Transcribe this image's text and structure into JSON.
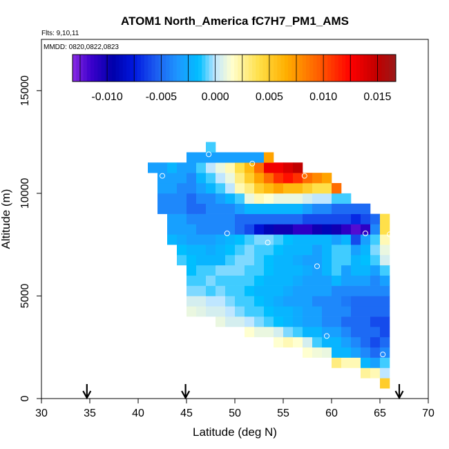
{
  "chart_data": {
    "type": "heatmap",
    "title": "ATOM1 North_America fC7H7_PM1_AMS",
    "subtitle_flights": "Flts: 9,10,11",
    "subtitle_dates": "MMDD: 0820,0822,0823",
    "xlabel": "Latitude (deg N)",
    "ylabel": "Altitude (m)",
    "xlim": [
      30,
      70
    ],
    "ylim": [
      0,
      17500
    ],
    "x_ticks": [
      "30",
      "35",
      "40",
      "45",
      "50",
      "55",
      "60",
      "65",
      "70"
    ],
    "y_ticks": [
      "0",
      "5000",
      "10000",
      "15000"
    ],
    "colorbar": {
      "range": [
        -0.0132,
        0.0167
      ],
      "tick_labels": [
        "-0.010",
        "-0.005",
        "0.000",
        "0.005",
        "0.010",
        "0.015"
      ],
      "tick_values": [
        -0.01,
        -0.005,
        0.0,
        0.005,
        0.01,
        0.015
      ],
      "color_stops": [
        {
          "v": -0.0132,
          "c": "#8a2be2"
        },
        {
          "v": -0.0115,
          "c": "#3c00cc"
        },
        {
          "v": -0.0095,
          "c": "#0000aa"
        },
        {
          "v": -0.0075,
          "c": "#0018e0"
        },
        {
          "v": -0.0055,
          "c": "#1c5cf0"
        },
        {
          "v": -0.0035,
          "c": "#1e96ff"
        },
        {
          "v": -0.0015,
          "c": "#00bfff"
        },
        {
          "v": 0.0,
          "c": "#bfe6ff"
        },
        {
          "v": 0.0015,
          "c": "#ffffd0"
        },
        {
          "v": 0.004,
          "c": "#ffe04a"
        },
        {
          "v": 0.0065,
          "c": "#ffb000"
        },
        {
          "v": 0.0095,
          "c": "#ff6000"
        },
        {
          "v": 0.0125,
          "c": "#ff0000"
        },
        {
          "v": 0.015,
          "c": "#c00000"
        },
        {
          "v": 0.0167,
          "c": "#9a1a1a"
        }
      ]
    },
    "cell_size": {
      "lat": 1.0,
      "alt": 500
    },
    "rows": [
      {
        "alt": 500,
        "lat0": 65,
        "values": [
          0.005
        ]
      },
      {
        "alt": 1000,
        "lat0": 63,
        "values": [
          0.0025,
          0.002,
          0.0
        ]
      },
      {
        "alt": 1500,
        "lat0": 60,
        "values": [
          0.003,
          0.002,
          0.002,
          -0.002,
          -0.003,
          -0.001
        ]
      },
      {
        "alt": 2000,
        "lat0": 57,
        "values": [
          0.0015,
          0.0012,
          0.001,
          -0.002,
          -0.002,
          -0.003,
          -0.004,
          -0.005,
          -0.004
        ]
      },
      {
        "alt": 2500,
        "lat0": 54,
        "values": [
          0.0015,
          0.002,
          0.0015,
          0.0005,
          -0.001,
          -0.002,
          -0.002,
          -0.003,
          -0.004,
          -0.005,
          -0.006,
          -0.005
        ]
      },
      {
        "alt": 3000,
        "lat0": 51,
        "values": [
          0.0015,
          0.001,
          0.001,
          0.0005,
          -0.0005,
          -0.001,
          -0.002,
          -0.002,
          -0.003,
          -0.003,
          -0.004,
          -0.005,
          -0.005,
          -0.005,
          -0.006
        ]
      },
      {
        "alt": 3500,
        "lat0": 48,
        "values": [
          0.001,
          0.0005,
          0.0005,
          0.0,
          -0.0005,
          -0.001,
          -0.0015,
          -0.002,
          -0.0025,
          -0.003,
          -0.003,
          -0.004,
          -0.004,
          -0.005,
          -0.005,
          -0.005,
          -0.006,
          -0.006
        ]
      },
      {
        "alt": 4000,
        "lat0": 45,
        "values": [
          0.001,
          0.0008,
          0.0005,
          0.0005,
          0.0,
          -0.0005,
          -0.001,
          -0.001,
          -0.0015,
          -0.002,
          -0.002,
          -0.0025,
          -0.003,
          -0.003,
          -0.004,
          -0.004,
          -0.004,
          -0.005,
          -0.005,
          -0.005,
          -0.005
        ]
      },
      {
        "alt": 4500,
        "lat0": 45,
        "values": [
          0.0005,
          0.0005,
          0.0,
          0.0,
          -0.0005,
          -0.001,
          -0.001,
          -0.0015,
          -0.002,
          -0.0025,
          -0.003,
          -0.003,
          -0.003,
          -0.004,
          -0.004,
          -0.004,
          -0.0045,
          -0.005,
          -0.005,
          -0.005,
          -0.005
        ]
      },
      {
        "alt": 5000,
        "lat0": 45,
        "values": [
          -0.0005,
          -0.0005,
          -0.001,
          -0.0005,
          -0.001,
          -0.001,
          -0.0015,
          -0.002,
          -0.002,
          -0.002,
          -0.0025,
          -0.003,
          -0.003,
          -0.003,
          -0.003,
          -0.004,
          -0.004,
          -0.004,
          -0.004,
          -0.004,
          -0.004
        ]
      },
      {
        "alt": 5500,
        "lat0": 45,
        "values": [
          -0.001,
          -0.001,
          -0.0005,
          -0.001,
          -0.001,
          -0.001,
          -0.001,
          -0.0015,
          -0.002,
          -0.002,
          -0.002,
          -0.0025,
          -0.003,
          -0.003,
          -0.003,
          -0.002,
          -0.003,
          -0.003,
          -0.003,
          -0.004,
          -0.003
        ]
      },
      {
        "alt": 6000,
        "lat0": 45,
        "values": [
          -0.0015,
          -0.001,
          -0.001,
          -0.0005,
          -0.0005,
          -0.0005,
          -0.001,
          -0.001,
          -0.0015,
          -0.002,
          -0.002,
          -0.002,
          -0.0025,
          -0.003,
          -0.002,
          -0.001,
          -0.003,
          -0.002,
          -0.002,
          -0.003,
          -0.001
        ]
      },
      {
        "alt": 6500,
        "lat0": 44,
        "values": [
          -0.001,
          -0.0015,
          -0.002,
          -0.002,
          -0.002,
          -0.001,
          -0.0005,
          -0.0005,
          -0.001,
          -0.0015,
          -0.002,
          -0.002,
          -0.0025,
          -0.003,
          -0.003,
          -0.002,
          -0.001,
          -0.001,
          -0.002,
          -0.0015,
          -0.001,
          0.0005
        ]
      },
      {
        "alt": 7000,
        "lat0": 44,
        "values": [
          -0.0015,
          -0.002,
          -0.002,
          -0.0025,
          -0.002,
          -0.0015,
          -0.001,
          -0.0005,
          -0.001,
          -0.001,
          -0.0015,
          -0.002,
          -0.002,
          -0.002,
          -0.003,
          -0.002,
          -0.001,
          -0.001,
          -0.003,
          -0.002,
          -0.0005,
          0.001
        ]
      },
      {
        "alt": 7500,
        "lat0": 43,
        "values": [
          -0.002,
          -0.0025,
          -0.003,
          -0.003,
          -0.003,
          -0.0025,
          -0.002,
          -0.0015,
          -0.001,
          -0.0005,
          -0.0005,
          -0.001,
          -0.0015,
          -0.002,
          -0.002,
          -0.002,
          -0.002,
          -0.003,
          -0.002,
          -0.006,
          -0.003,
          -0.001,
          0.002
        ]
      },
      {
        "alt": 8000,
        "lat0": 43,
        "values": [
          -0.003,
          -0.003,
          -0.003,
          -0.004,
          -0.004,
          -0.004,
          -0.004,
          -0.005,
          -0.006,
          -0.008,
          -0.009,
          -0.01,
          -0.01,
          -0.011,
          -0.011,
          -0.01,
          -0.009,
          -0.01,
          -0.011,
          -0.012,
          -0.011,
          -0.004,
          0.004
        ]
      },
      {
        "alt": 8500,
        "lat0": 43,
        "values": [
          -0.003,
          -0.003,
          -0.004,
          -0.004,
          -0.004,
          -0.004,
          -0.004,
          -0.005,
          -0.005,
          -0.005,
          -0.005,
          -0.005,
          -0.005,
          -0.005,
          -0.006,
          -0.006,
          -0.006,
          -0.006,
          -0.006,
          -0.007,
          -0.006,
          -0.005,
          0.004
        ]
      },
      {
        "alt": 9000,
        "lat0": 42,
        "values": [
          -0.004,
          -0.004,
          -0.004,
          -0.005,
          -0.005,
          -0.004,
          -0.004,
          -0.004,
          -0.003,
          -0.002,
          -0.002,
          -0.002,
          -0.002,
          -0.002,
          -0.002,
          -0.003,
          -0.004,
          -0.004,
          -0.005,
          -0.005,
          -0.005,
          -0.005
        ]
      },
      {
        "alt": 9500,
        "lat0": 42,
        "values": [
          -0.004,
          -0.004,
          -0.004,
          -0.005,
          -0.004,
          -0.004,
          -0.003,
          -0.002,
          -0.001,
          0.001,
          0.002,
          0.0015,
          0.001,
          0.001,
          0.001,
          0.0005,
          0.0,
          0.0,
          -0.001,
          -0.001
        ]
      },
      {
        "alt": 10000,
        "lat0": 42,
        "values": [
          -0.003,
          -0.003,
          -0.004,
          -0.004,
          -0.003,
          -0.002,
          -0.001,
          0.0,
          0.002,
          0.003,
          0.005,
          0.006,
          0.007,
          0.006,
          0.006,
          0.005,
          0.004,
          0.004,
          0.009
        ]
      },
      {
        "alt": 10500,
        "lat0": 42,
        "values": [
          -0.003,
          -0.003,
          -0.003,
          -0.004,
          -0.002,
          -0.001,
          0.0,
          0.001,
          0.003,
          0.005,
          0.007,
          0.009,
          0.011,
          0.012,
          0.011,
          0.009,
          0.008,
          0.007
        ]
      },
      {
        "alt": 11000,
        "lat0": 41,
        "values": [
          -0.003,
          -0.003,
          -0.002,
          -0.003,
          -0.003,
          -0.001,
          0.0,
          0.001,
          0.002,
          0.004,
          0.006,
          0.009,
          0.013,
          0.013,
          0.014,
          0.015
        ]
      },
      {
        "alt": 11500,
        "lat0": 45,
        "values": [
          -0.003,
          -0.003,
          -0.003,
          -0.003,
          -0.003,
          -0.003,
          -0.003,
          -0.003,
          0.007
        ]
      },
      {
        "alt": 12000,
        "lat0": 47,
        "values": [
          -0.001
        ]
      }
    ],
    "markers": [
      {
        "lat": 42.5,
        "alt": 10850
      },
      {
        "lat": 47.3,
        "alt": 11900
      },
      {
        "lat": 51.8,
        "alt": 11450
      },
      {
        "lat": 57.2,
        "alt": 10850
      },
      {
        "lat": 49.2,
        "alt": 8050
      },
      {
        "lat": 53.4,
        "alt": 7600
      },
      {
        "lat": 63.5,
        "alt": 8050
      },
      {
        "lat": 66.0,
        "alt": 8000
      },
      {
        "lat": 58.5,
        "alt": 6450
      },
      {
        "lat": 59.5,
        "alt": 3050
      },
      {
        "lat": 65.3,
        "alt": 2150
      }
    ],
    "flight_arrows_lat": [
      34.7,
      44.9,
      67.0
    ]
  }
}
